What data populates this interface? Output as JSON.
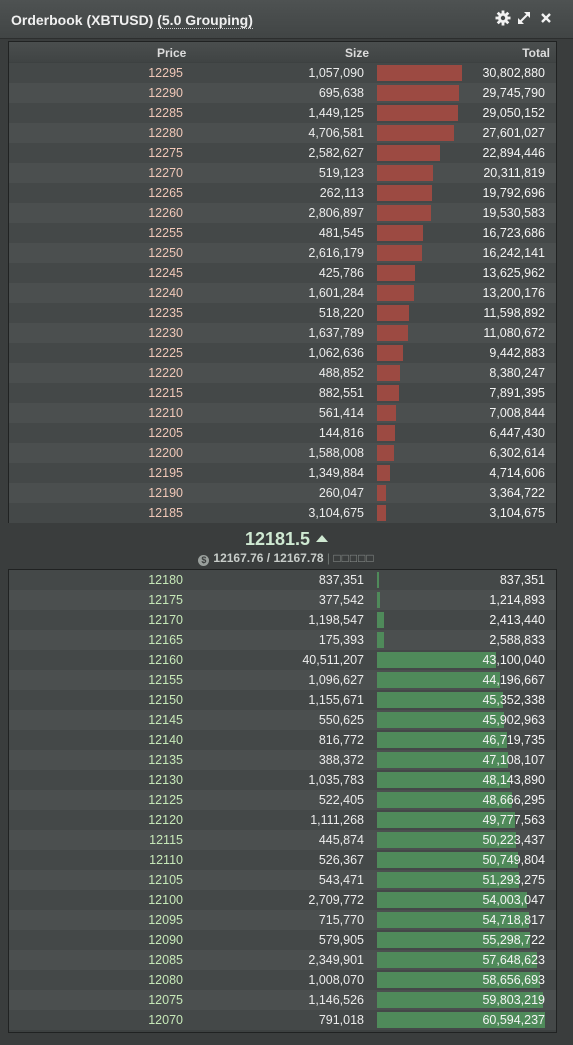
{
  "header": {
    "title": "Orderbook (XBTUSD)",
    "grouping": "(5.0 Grouping)",
    "icons": [
      "gear-icon",
      "expand-icon",
      "close-icon"
    ]
  },
  "columns": {
    "price": "Price",
    "size": "Size",
    "total": "Total"
  },
  "colors": {
    "sell_bar": "#9c4a42",
    "buy_bar": "#4f8a5a",
    "sell_price": "#f0c8b8",
    "buy_price": "#c6e8b8",
    "last_price": "#cfe9d2"
  },
  "asks": [
    {
      "price": "12295",
      "size": "1,057,090",
      "total": "30,802,880"
    },
    {
      "price": "12290",
      "size": "695,638",
      "total": "29,745,790"
    },
    {
      "price": "12285",
      "size": "1,449,125",
      "total": "29,050,152"
    },
    {
      "price": "12280",
      "size": "4,706,581",
      "total": "27,601,027"
    },
    {
      "price": "12275",
      "size": "2,582,627",
      "total": "22,894,446"
    },
    {
      "price": "12270",
      "size": "519,123",
      "total": "20,311,819"
    },
    {
      "price": "12265",
      "size": "262,113",
      "total": "19,792,696"
    },
    {
      "price": "12260",
      "size": "2,806,897",
      "total": "19,530,583"
    },
    {
      "price": "12255",
      "size": "481,545",
      "total": "16,723,686"
    },
    {
      "price": "12250",
      "size": "2,616,179",
      "total": "16,242,141"
    },
    {
      "price": "12245",
      "size": "425,786",
      "total": "13,625,962"
    },
    {
      "price": "12240",
      "size": "1,601,284",
      "total": "13,200,176"
    },
    {
      "price": "12235",
      "size": "518,220",
      "total": "11,598,892"
    },
    {
      "price": "12230",
      "size": "1,637,789",
      "total": "11,080,672"
    },
    {
      "price": "12225",
      "size": "1,062,636",
      "total": "9,442,883"
    },
    {
      "price": "12220",
      "size": "488,852",
      "total": "8,380,247"
    },
    {
      "price": "12215",
      "size": "882,551",
      "total": "7,891,395"
    },
    {
      "price": "12210",
      "size": "561,414",
      "total": "7,008,844"
    },
    {
      "price": "12205",
      "size": "144,816",
      "total": "6,447,430"
    },
    {
      "price": "12200",
      "size": "1,588,008",
      "total": "6,302,614"
    },
    {
      "price": "12195",
      "size": "1,349,884",
      "total": "4,714,606"
    },
    {
      "price": "12190",
      "size": "260,047",
      "total": "3,364,722"
    },
    {
      "price": "12185",
      "size": "3,104,675",
      "total": "3,104,675"
    }
  ],
  "last_price": "12181.5",
  "index_price": "12167.76",
  "mark_price": "12167.78",
  "index_separator": "/",
  "index_extra": "□□□□□",
  "bids": [
    {
      "price": "12180",
      "size": "837,351",
      "total": "837,351"
    },
    {
      "price": "12175",
      "size": "377,542",
      "total": "1,214,893"
    },
    {
      "price": "12170",
      "size": "1,198,547",
      "total": "2,413,440"
    },
    {
      "price": "12165",
      "size": "175,393",
      "total": "2,588,833"
    },
    {
      "price": "12160",
      "size": "40,511,207",
      "total": "43,100,040"
    },
    {
      "price": "12155",
      "size": "1,096,627",
      "total": "44,196,667"
    },
    {
      "price": "12150",
      "size": "1,155,671",
      "total": "45,352,338"
    },
    {
      "price": "12145",
      "size": "550,625",
      "total": "45,902,963"
    },
    {
      "price": "12140",
      "size": "816,772",
      "total": "46,719,735"
    },
    {
      "price": "12135",
      "size": "388,372",
      "total": "47,108,107"
    },
    {
      "price": "12130",
      "size": "1,035,783",
      "total": "48,143,890"
    },
    {
      "price": "12125",
      "size": "522,405",
      "total": "48,666,295"
    },
    {
      "price": "12120",
      "size": "1,111,268",
      "total": "49,777,563"
    },
    {
      "price": "12115",
      "size": "445,874",
      "total": "50,223,437"
    },
    {
      "price": "12110",
      "size": "526,367",
      "total": "50,749,804"
    },
    {
      "price": "12105",
      "size": "543,471",
      "total": "51,293,275"
    },
    {
      "price": "12100",
      "size": "2,709,772",
      "total": "54,003,047"
    },
    {
      "price": "12095",
      "size": "715,770",
      "total": "54,718,817"
    },
    {
      "price": "12090",
      "size": "579,905",
      "total": "55,298,722"
    },
    {
      "price": "12085",
      "size": "2,349,901",
      "total": "57,648,623"
    },
    {
      "price": "12080",
      "size": "1,008,070",
      "total": "58,656,693"
    },
    {
      "price": "12075",
      "size": "1,146,526",
      "total": "59,803,219"
    },
    {
      "price": "12070",
      "size": "791,018",
      "total": "60,594,237"
    }
  ]
}
